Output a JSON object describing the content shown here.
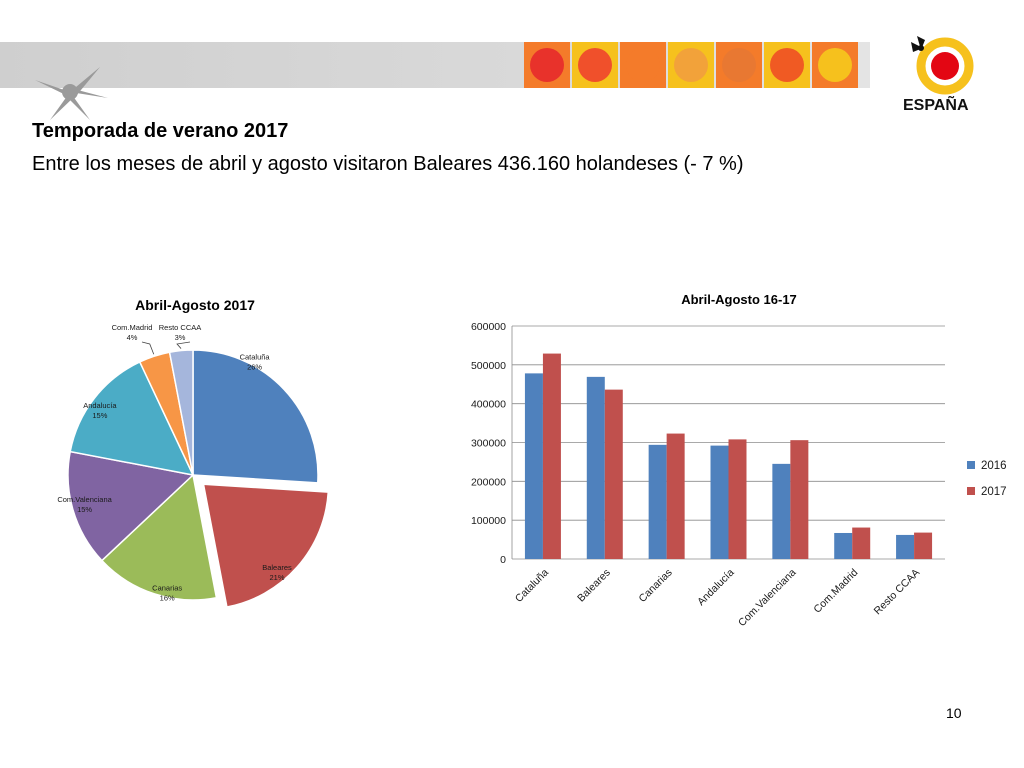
{
  "slide": {
    "heading": "Temporada de verano 2017",
    "subheading": "Entre los meses de abril  y agosto visitaron Baleares 436.160  holandeses (- 7 %)",
    "page_number": "10"
  },
  "brand": {
    "logo_text": "ESPAÑA",
    "tile_colors": [
      "#e8322b",
      "#f0502b",
      "#f47b2a",
      "#f2a23a",
      "#e87832",
      "#f05a23",
      "#f6c11d"
    ]
  },
  "chart_data": [
    {
      "type": "pie",
      "title": "Abril-Agosto 2017",
      "slices": [
        {
          "label": "Cataluña",
          "pct_label": "26%",
          "value": 26,
          "color": "#4f81bd",
          "exploded": false
        },
        {
          "label": "Baleares",
          "pct_label": "21%",
          "value": 21,
          "color": "#c0504d",
          "exploded": true
        },
        {
          "label": "Canarias",
          "pct_label": "16%",
          "value": 16,
          "color": "#9bbb59",
          "exploded": false
        },
        {
          "label": "Com.Valenciana",
          "pct_label": "15%",
          "value": 15,
          "color": "#8064a2",
          "exploded": false
        },
        {
          "label": "Andalucía",
          "pct_label": "15%",
          "value": 15,
          "color": "#4bacc6",
          "exploded": false
        },
        {
          "label": "Com.Madrid",
          "pct_label": "4%",
          "value": 4,
          "color": "#f79646",
          "exploded": false
        },
        {
          "label": "Resto CCAA",
          "pct_label": "3%",
          "value": 3,
          "color": "#a5b6dc",
          "exploded": false
        }
      ]
    },
    {
      "type": "bar",
      "title": "Abril-Agosto 16-17",
      "categories": [
        "Cataluña",
        "Baleares",
        "Canarias",
        "Andalucía",
        "Com.Valenciana",
        "Com.Madrid",
        "Resto CCAA"
      ],
      "series": [
        {
          "name": "2016",
          "color": "#4f81bd",
          "values": [
            478000,
            469000,
            294000,
            292000,
            245000,
            67000,
            62000
          ]
        },
        {
          "name": "2017",
          "color": "#c0504d",
          "values": [
            529000,
            436160,
            323000,
            308000,
            306000,
            81000,
            68000
          ]
        }
      ],
      "ylim": [
        0,
        600000
      ],
      "yticks": [
        "0",
        "100000",
        "200000",
        "300000",
        "400000",
        "500000",
        "600000"
      ],
      "grid": true,
      "legend": "right"
    }
  ]
}
